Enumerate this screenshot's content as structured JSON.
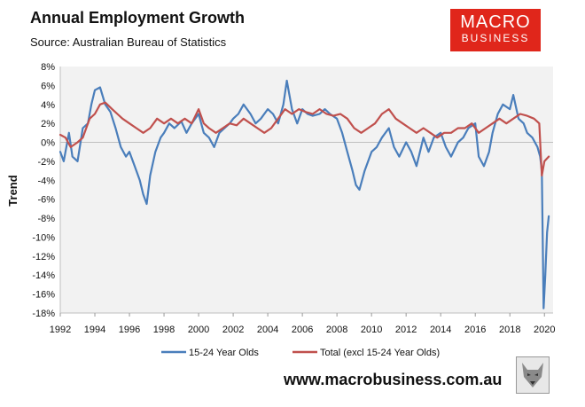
{
  "header": {
    "title": "Annual Employment Growth",
    "source": "Source: Australian Bureau of Statistics"
  },
  "logo": {
    "line1": "MACRO",
    "line2": "BUSINESS"
  },
  "footer": {
    "website": "www.macrobusiness.com.au",
    "mascot_icon": "wolf-head-icon"
  },
  "colors": {
    "youth": "#4a7ebb",
    "total": "#c0504d",
    "plot_bg": "#f2f2f2",
    "logo_bg": "#e0261b"
  },
  "chart_data": {
    "type": "line",
    "title": "Annual Employment Growth",
    "xlabel": "",
    "ylabel": "Trend",
    "xlim": [
      1992,
      2020.5
    ],
    "ylim": [
      -18,
      8
    ],
    "x_ticks": [
      1992,
      1994,
      1996,
      1998,
      2000,
      2002,
      2004,
      2006,
      2008,
      2010,
      2012,
      2014,
      2016,
      2018,
      2020
    ],
    "y_ticks": [
      8,
      6,
      4,
      2,
      0,
      -2,
      -4,
      -6,
      -8,
      -10,
      -12,
      -14,
      -16,
      -18
    ],
    "y_tick_labels": [
      "8%",
      "6%",
      "4%",
      "2%",
      "0%",
      "-2%",
      "-4%",
      "-6%",
      "-8%",
      "-10%",
      "-12%",
      "-14%",
      "-16%",
      "-18%"
    ],
    "legend_position": "bottom",
    "series": [
      {
        "name": "15-24 Year Olds",
        "color": "#4a7ebb",
        "x": [
          1992.0,
          1992.2,
          1992.5,
          1992.7,
          1993.0,
          1993.3,
          1993.6,
          1993.8,
          1994.0,
          1994.3,
          1994.6,
          1994.9,
          1995.2,
          1995.5,
          1995.8,
          1996.0,
          1996.3,
          1996.6,
          1996.8,
          1997.0,
          1997.2,
          1997.5,
          1997.8,
          1998.0,
          1998.3,
          1998.6,
          1999.0,
          1999.3,
          1999.6,
          2000.0,
          2000.3,
          2000.6,
          2000.9,
          2001.2,
          2001.5,
          2001.8,
          2002.0,
          2002.3,
          2002.6,
          2003.0,
          2003.3,
          2003.6,
          2004.0,
          2004.3,
          2004.6,
          2004.9,
          2005.1,
          2005.4,
          2005.7,
          2006.0,
          2006.3,
          2006.6,
          2007.0,
          2007.3,
          2007.6,
          2008.0,
          2008.3,
          2008.6,
          2008.9,
          2009.1,
          2009.3,
          2009.6,
          2010.0,
          2010.3,
          2010.6,
          2011.0,
          2011.3,
          2011.6,
          2012.0,
          2012.3,
          2012.6,
          2013.0,
          2013.3,
          2013.6,
          2014.0,
          2014.3,
          2014.6,
          2015.0,
          2015.3,
          2015.6,
          2016.0,
          2016.2,
          2016.5,
          2016.8,
          2017.0,
          2017.3,
          2017.6,
          2018.0,
          2018.2,
          2018.5,
          2018.8,
          2019.0,
          2019.3,
          2019.6,
          2019.75,
          2019.85,
          2019.95,
          2020.05,
          2020.15,
          2020.25
        ],
        "values": [
          -1.0,
          -2.0,
          1.0,
          -1.5,
          -2.0,
          1.5,
          2.0,
          4.0,
          5.5,
          5.8,
          4.0,
          3.2,
          1.5,
          -0.5,
          -1.5,
          -1.0,
          -2.5,
          -4.0,
          -5.5,
          -6.5,
          -3.5,
          -1.0,
          0.5,
          1.0,
          2.0,
          1.5,
          2.2,
          1.0,
          2.0,
          3.0,
          1.0,
          0.5,
          -0.5,
          1.0,
          1.5,
          2.0,
          2.5,
          3.0,
          4.0,
          3.0,
          2.0,
          2.5,
          3.5,
          3.0,
          2.0,
          4.0,
          6.5,
          3.5,
          2.0,
          3.5,
          3.0,
          2.8,
          3.0,
          3.5,
          3.0,
          2.5,
          1.0,
          -1.0,
          -3.0,
          -4.5,
          -5.0,
          -3.0,
          -1.0,
          -0.5,
          0.5,
          1.5,
          -0.5,
          -1.5,
          0.0,
          -1.0,
          -2.5,
          0.5,
          -1.0,
          0.5,
          1.0,
          -0.5,
          -1.5,
          0.0,
          0.5,
          1.5,
          2.0,
          -1.5,
          -2.5,
          -1.0,
          1.0,
          3.0,
          4.0,
          3.5,
          5.0,
          2.5,
          2.0,
          1.0,
          0.5,
          -0.5,
          -1.5,
          -3.0,
          -17.5,
          -14.0,
          -9.5,
          -7.8
        ]
      },
      {
        "name": "Total (excl 15-24 Year Olds)",
        "color": "#c0504d",
        "x": [
          1992.0,
          1992.3,
          1992.6,
          1993.0,
          1993.3,
          1993.7,
          1994.0,
          1994.3,
          1994.6,
          1995.0,
          1995.3,
          1995.6,
          1996.0,
          1996.4,
          1996.8,
          1997.2,
          1997.6,
          1998.0,
          1998.4,
          1998.8,
          1999.2,
          1999.6,
          2000.0,
          2000.3,
          2000.6,
          2001.0,
          2001.4,
          2001.8,
          2002.2,
          2002.6,
          2003.0,
          2003.4,
          2003.8,
          2004.2,
          2004.6,
          2005.0,
          2005.4,
          2005.8,
          2006.2,
          2006.6,
          2007.0,
          2007.4,
          2007.8,
          2008.2,
          2008.6,
          2009.0,
          2009.4,
          2009.8,
          2010.2,
          2010.6,
          2011.0,
          2011.4,
          2011.8,
          2012.2,
          2012.6,
          2013.0,
          2013.4,
          2013.8,
          2014.2,
          2014.6,
          2015.0,
          2015.4,
          2015.8,
          2016.2,
          2016.6,
          2017.0,
          2017.4,
          2017.8,
          2018.2,
          2018.6,
          2019.0,
          2019.4,
          2019.7,
          2019.85,
          2020.0,
          2020.25
        ],
        "values": [
          0.8,
          0.5,
          -0.5,
          0.0,
          0.5,
          2.5,
          3.0,
          4.0,
          4.2,
          3.5,
          3.0,
          2.5,
          2.0,
          1.5,
          1.0,
          1.5,
          2.5,
          2.0,
          2.5,
          2.0,
          2.5,
          2.0,
          3.5,
          2.0,
          1.5,
          1.0,
          1.5,
          2.0,
          1.8,
          2.5,
          2.0,
          1.5,
          1.0,
          1.5,
          2.5,
          3.5,
          3.0,
          3.5,
          3.2,
          3.0,
          3.5,
          3.0,
          2.8,
          3.0,
          2.5,
          1.5,
          1.0,
          1.5,
          2.0,
          3.0,
          3.5,
          2.5,
          2.0,
          1.5,
          1.0,
          1.5,
          1.0,
          0.5,
          1.0,
          1.0,
          1.5,
          1.5,
          2.0,
          1.0,
          1.5,
          2.0,
          2.5,
          2.0,
          2.5,
          3.0,
          2.8,
          2.5,
          2.0,
          -3.5,
          -2.0,
          -1.5
        ]
      }
    ]
  }
}
